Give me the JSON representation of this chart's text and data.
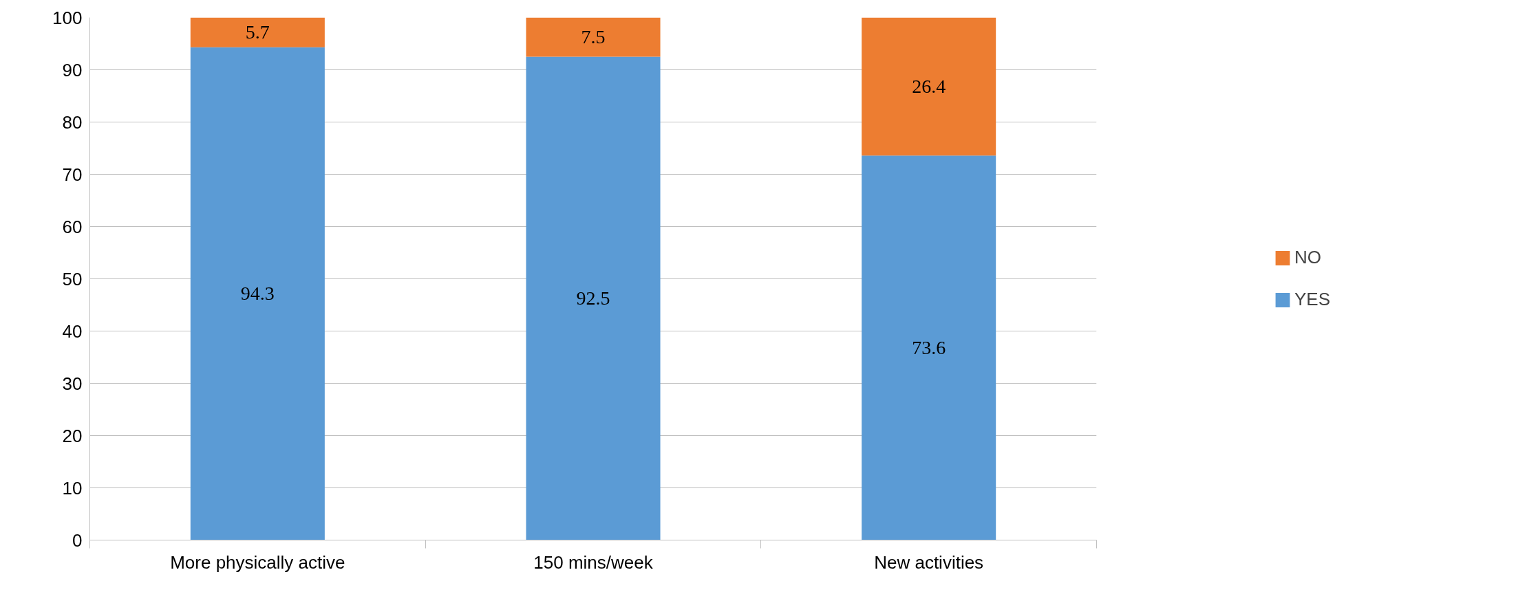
{
  "chart_data": {
    "type": "bar",
    "stacked": true,
    "categories": [
      "More physically active",
      "150 mins/week",
      "New activities"
    ],
    "series": [
      {
        "name": "YES",
        "color": "#5b9bd5",
        "values": [
          94.3,
          92.5,
          73.6
        ]
      },
      {
        "name": "NO",
        "color": "#ed7d31",
        "values": [
          5.7,
          7.5,
          26.4
        ]
      }
    ],
    "ylim": [
      0,
      100
    ],
    "yticks": [
      0,
      10,
      20,
      30,
      40,
      50,
      60,
      70,
      80,
      90,
      100
    ],
    "grid": "y",
    "legend": "right",
    "data_labels": true
  }
}
